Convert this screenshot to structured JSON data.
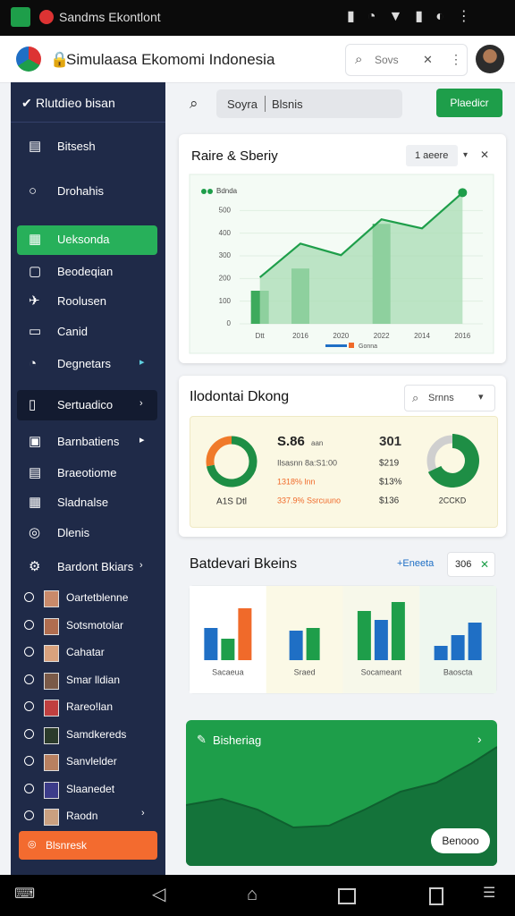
{
  "status_bar": {
    "title": "Sandms Ekontlont"
  },
  "header": {
    "title": "Simulaasa Ekomomi Indonesia",
    "search": "Sovs"
  },
  "sidebar": {
    "heading": "Rlutdieo bisan",
    "items": [
      "Bitsesh",
      "Drohahis",
      "Ueksonda",
      "Beodeqian",
      "Roolusen",
      "Canid",
      "Degnetars",
      "Sertuadico",
      "Barnbatiens",
      "Braeotiome",
      "Sladnalse",
      "Dlenis",
      "Bardont Bkiars"
    ],
    "users": [
      "Oartetblenne",
      "Sotsmotolar",
      "Cahatar",
      "Smar lldian",
      "Rareo!lan",
      "Samdkereds",
      "Sanvlelder",
      "Slaanedet",
      "Raodn"
    ],
    "button": "Blsnresk"
  },
  "toolbar": {
    "search_left": "Soyra",
    "search_right": "Blsnis",
    "button": "Plaedicr"
  },
  "growth_card": {
    "title": "Raire & Sberiy",
    "dropdown": "1 aeere",
    "chart_data": {
      "type": "bar",
      "categories": [
        "Dtt",
        "2016",
        "2020",
        "2022",
        "2014",
        "2016"
      ],
      "series": [
        {
          "name": "Bdnda",
          "type": "line",
          "color": "#1e9e4a",
          "values": [
            205,
            354,
            303,
            461,
            421,
            579
          ]
        },
        {
          "name": "Gonna",
          "type": "bar",
          "color": "#3daa5c",
          "values": [
            146,
            244,
            null,
            441,
            null,
            null
          ]
        }
      ],
      "ylim": [
        0,
        600
      ],
      "yticks": [
        0,
        100,
        200,
        300,
        400,
        500
      ]
    }
  },
  "indicator_card": {
    "title": "Ilodontai Dkong",
    "search": "Srnns",
    "donut": {
      "label": "A1S Dtl",
      "values": [
        72,
        28
      ],
      "colors": [
        "#1e8e45",
        "#f07a2a"
      ]
    },
    "stats": {
      "headline": "S.86",
      "headline_note": "aan",
      "lines": [
        "Ilsasnn 8a:S1:00",
        "1318% lnn",
        "337.9% Ssrcuuno"
      ],
      "right": [
        "301",
        "$219",
        "$13%",
        "$136"
      ]
    },
    "gauge": {
      "label": "2CCKD",
      "value": 68
    }
  },
  "comparison_card": {
    "title": "Batdevari Bkeins",
    "link": "+Eneeta",
    "count": "306",
    "panels": [
      {
        "label": "Sacaeua",
        "values": [
          36,
          24,
          58
        ],
        "colors": [
          "#1f6fc5",
          "#1e9e4a",
          "#f06a2a"
        ]
      },
      {
        "label": "Sraed",
        "values": [
          33,
          36
        ],
        "colors": [
          "#1f6fc5",
          "#1e9e4a"
        ]
      },
      {
        "label": "Socameant",
        "values": [
          55,
          45,
          65
        ],
        "colors": [
          "#1e9e4a",
          "#1f6fc5",
          "#1e9e4a"
        ]
      },
      {
        "label": "Baoscta",
        "values": [
          16,
          28,
          42
        ],
        "colors": [
          "#1f6fc5",
          "#1f6fc5",
          "#1f6fc5"
        ]
      }
    ]
  },
  "trend_card": {
    "title": "Bisheriag",
    "button": "Benooo"
  }
}
